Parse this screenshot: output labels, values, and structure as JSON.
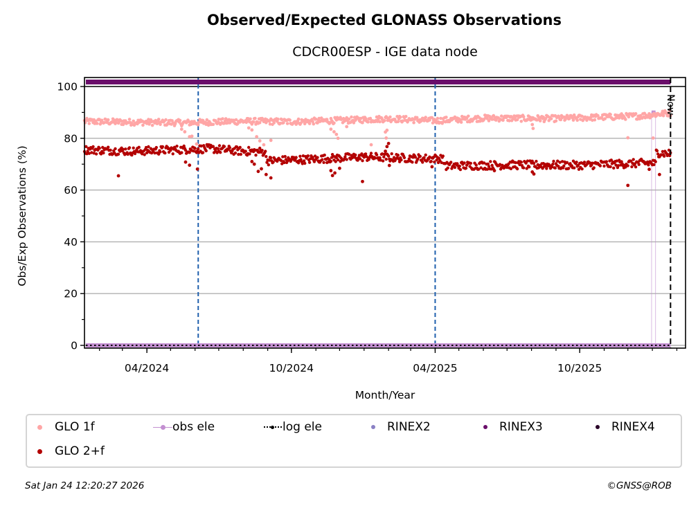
{
  "chart_data": {
    "type": "scatter",
    "title": "Observed/Expected GLONASS Observations",
    "subtitle": "CDCR00ESP - IGE data node",
    "xlabel": "Month/Year",
    "ylabel": "Obs/Exp Observations (%)",
    "xlim": [
      "2024-01-13",
      "2026-02-12"
    ],
    "ylim": [
      -0.5,
      101.5
    ],
    "y_ticks": [
      0,
      20,
      40,
      60,
      80,
      100
    ],
    "y_minor_ticks": [
      10,
      30,
      50,
      70,
      90
    ],
    "x_ticks": [
      {
        "date": "2024-04-01",
        "label": "04/2024"
      },
      {
        "date": "2024-10-01",
        "label": "10/2024"
      },
      {
        "date": "2025-04-01",
        "label": "04/2025"
      },
      {
        "date": "2025-10-01",
        "label": "10/2025"
      }
    ],
    "x_minor_tick_interval": "month",
    "grid": "horizontal",
    "now_marker": {
      "date": "2026-01-24",
      "label": "Now"
    },
    "event_lines": [
      {
        "date": "2024-06-05",
        "style": "dashed",
        "color": "#1f5fad"
      },
      {
        "date": "2025-04-01",
        "style": "dashed",
        "color": "#1f5fad"
      }
    ],
    "series": [
      {
        "name": "GLO 1f",
        "color": "#ffa6a6",
        "trend": [
          {
            "date": "2024-01-13",
            "value": 86.5
          },
          {
            "date": "2024-03-01",
            "value": 86.3
          },
          {
            "date": "2024-05-20",
            "value": 86.0
          },
          {
            "date": "2024-08-01",
            "value": 86.6
          },
          {
            "date": "2024-10-01",
            "value": 86.4
          },
          {
            "date": "2024-12-15",
            "value": 87.0
          },
          {
            "date": "2025-02-01",
            "value": 87.6
          },
          {
            "date": "2025-04-01",
            "value": 86.8
          },
          {
            "date": "2025-06-01",
            "value": 87.8
          },
          {
            "date": "2025-09-01",
            "value": 87.6
          },
          {
            "date": "2025-12-15",
            "value": 88.6
          },
          {
            "date": "2026-01-24",
            "value": 89.8
          }
        ],
        "spread": 1.2,
        "outliers": [
          {
            "date": "2024-05-15",
            "value": 83.5
          },
          {
            "date": "2024-05-19",
            "value": 82.5
          },
          {
            "date": "2024-05-25",
            "value": 80.6
          },
          {
            "date": "2024-05-28",
            "value": 80.8
          },
          {
            "date": "2024-06-03",
            "value": 77.8
          },
          {
            "date": "2024-08-08",
            "value": 84.0
          },
          {
            "date": "2024-08-12",
            "value": 83.2
          },
          {
            "date": "2024-08-18",
            "value": 80.6
          },
          {
            "date": "2024-08-22",
            "value": 79.0
          },
          {
            "date": "2024-08-27",
            "value": 77.5
          },
          {
            "date": "2024-09-05",
            "value": 79.2
          },
          {
            "date": "2024-11-20",
            "value": 83.5
          },
          {
            "date": "2024-11-24",
            "value": 82.5
          },
          {
            "date": "2024-11-27",
            "value": 81.5
          },
          {
            "date": "2024-11-29",
            "value": 80.0
          },
          {
            "date": "2024-12-10",
            "value": 84.5
          },
          {
            "date": "2025-01-10",
            "value": 77.5
          },
          {
            "date": "2025-01-28",
            "value": 82.4
          },
          {
            "date": "2025-01-30",
            "value": 83.1
          },
          {
            "date": "2025-01-29",
            "value": 80.1
          },
          {
            "date": "2025-08-02",
            "value": 85.3
          },
          {
            "date": "2025-08-03",
            "value": 83.8
          },
          {
            "date": "2025-12-01",
            "value": 80.2
          },
          {
            "date": "2026-01-02",
            "value": 80.1
          }
        ]
      },
      {
        "name": "GLO 2+f",
        "color": "#b30000",
        "trend": [
          {
            "date": "2024-01-13",
            "value": 75.6
          },
          {
            "date": "2024-03-15",
            "value": 75.0
          },
          {
            "date": "2024-05-01",
            "value": 75.5
          },
          {
            "date": "2024-06-20",
            "value": 76.0
          },
          {
            "date": "2024-08-01",
            "value": 75.0
          },
          {
            "date": "2024-08-28",
            "value": 74.8
          },
          {
            "date": "2024-09-01",
            "value": 71.3
          },
          {
            "date": "2024-11-01",
            "value": 72.0
          },
          {
            "date": "2025-01-01",
            "value": 72.8
          },
          {
            "date": "2025-03-15",
            "value": 72.2
          },
          {
            "date": "2025-04-10",
            "value": 72.2
          },
          {
            "date": "2025-04-15",
            "value": 69.3
          },
          {
            "date": "2025-07-01",
            "value": 69.7
          },
          {
            "date": "2025-10-01",
            "value": 69.6
          },
          {
            "date": "2025-12-31",
            "value": 70.5
          },
          {
            "date": "2026-01-05",
            "value": 70.0
          },
          {
            "date": "2026-01-06",
            "value": 74.5
          },
          {
            "date": "2026-01-24",
            "value": 74.0
          }
        ],
        "spread": 1.6,
        "outliers": [
          {
            "date": "2024-02-25",
            "value": 65.5
          },
          {
            "date": "2024-05-20",
            "value": 70.8
          },
          {
            "date": "2024-05-25",
            "value": 69.6
          },
          {
            "date": "2024-06-04",
            "value": 68.1
          },
          {
            "date": "2024-08-12",
            "value": 71.0
          },
          {
            "date": "2024-08-15",
            "value": 70.0
          },
          {
            "date": "2024-08-20",
            "value": 67.2
          },
          {
            "date": "2024-08-24",
            "value": 68.2
          },
          {
            "date": "2024-08-30",
            "value": 66.0
          },
          {
            "date": "2024-09-05",
            "value": 64.7
          },
          {
            "date": "2024-11-20",
            "value": 67.5
          },
          {
            "date": "2024-11-22",
            "value": 65.6
          },
          {
            "date": "2024-11-25",
            "value": 66.6
          },
          {
            "date": "2024-12-01",
            "value": 68.4
          },
          {
            "date": "2024-12-30",
            "value": 63.3
          },
          {
            "date": "2025-01-28",
            "value": 75.0
          },
          {
            "date": "2025-01-30",
            "value": 76.8
          },
          {
            "date": "2025-02-01",
            "value": 78.0
          },
          {
            "date": "2025-02-02",
            "value": 69.5
          },
          {
            "date": "2025-03-28",
            "value": 69.0
          },
          {
            "date": "2025-06-15",
            "value": 67.5
          },
          {
            "date": "2025-08-02",
            "value": 67.0
          },
          {
            "date": "2025-08-04",
            "value": 66.2
          },
          {
            "date": "2025-12-01",
            "value": 61.8
          },
          {
            "date": "2026-01-10",
            "value": 66.0
          },
          {
            "date": "2025-12-28",
            "value": 68.0
          }
        ]
      },
      {
        "name": "obs ele",
        "color": "#c38fd1",
        "trend": [
          {
            "date": "2024-01-13",
            "value": 0
          },
          {
            "date": "2026-01-24",
            "value": 0
          }
        ],
        "spikes": [
          {
            "date": "2025-12-31",
            "value": 90.2
          },
          {
            "date": "2026-01-05",
            "value": 90.2
          }
        ]
      },
      {
        "name": "log ele",
        "color": "#000000",
        "trend": [
          {
            "date": "2024-01-13",
            "value": 0
          },
          {
            "date": "2026-01-24",
            "value": 0
          }
        ]
      },
      {
        "name": "RINEX2",
        "color": "#8a80c4",
        "values": []
      },
      {
        "name": "RINEX3",
        "color": "#6a0e6a",
        "band": {
          "from": "2024-01-13",
          "to": "2026-01-24",
          "value": 101.5
        }
      },
      {
        "name": "RINEX4",
        "color": "#2a0529",
        "values": []
      }
    ],
    "legend_position": "bottom",
    "legend_entries": [
      {
        "label": "GLO 1f",
        "marker": "dot",
        "color": "#ffa6a6"
      },
      {
        "label": "obs ele",
        "marker": "line-dot",
        "color": "#c38fd1"
      },
      {
        "label": "log ele",
        "marker": "dotted-dot",
        "color": "#000000"
      },
      {
        "label": "RINEX2",
        "marker": "dot",
        "color": "#8a80c4"
      },
      {
        "label": "RINEX3",
        "marker": "dot",
        "color": "#6a0e6a"
      },
      {
        "label": "RINEX4",
        "marker": "dot",
        "color": "#2a0529"
      },
      {
        "label": "GLO 2+f",
        "marker": "dot",
        "color": "#b30000"
      }
    ]
  },
  "footer": {
    "timestamp": "Sat Jan 24 12:20:27 2026",
    "credit": "©GNSS@ROB"
  }
}
